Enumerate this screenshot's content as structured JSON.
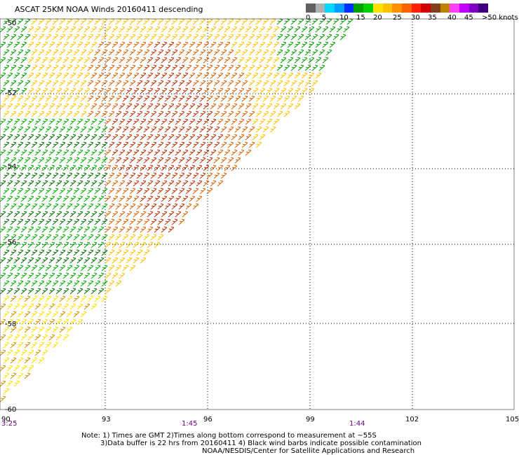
{
  "title": "ASCAT 25KM NOAA Winds 20160411 descending",
  "legend": {
    "ticks": [
      "0",
      "5",
      "10",
      "15",
      "20",
      "25",
      "30",
      "35",
      "40",
      "45",
      ">50 knots"
    ],
    "colors": [
      "#606060",
      "#b0b0b0",
      "#00d8ff",
      "#00a0ff",
      "#0030ff",
      "#00a000",
      "#00d000",
      "#ffe000",
      "#ffc000",
      "#ff9000",
      "#ff6000",
      "#ff2000",
      "#d00000",
      "#804020",
      "#c08000",
      "#ff40ff",
      "#c000ff",
      "#8000c0",
      "#400080"
    ]
  },
  "lat_labels": [
    "-50",
    "-52",
    "-54",
    "-56",
    "-58",
    "-60"
  ],
  "lon_labels": [
    "90",
    "93",
    "96",
    "99",
    "102",
    "105"
  ],
  "time_labels": [
    "3:25",
    "1:45",
    "1:44"
  ],
  "notes": [
    "Note: 1) Times are GMT 2)Times along bottom correspond to measurement at ~55S",
    "3)Data buffer is 22 hrs from 20160411 4) Black wind barbs indicate possible contamination",
    "NOAA/NESDIS/Center for Satellite Applications and Research"
  ]
}
